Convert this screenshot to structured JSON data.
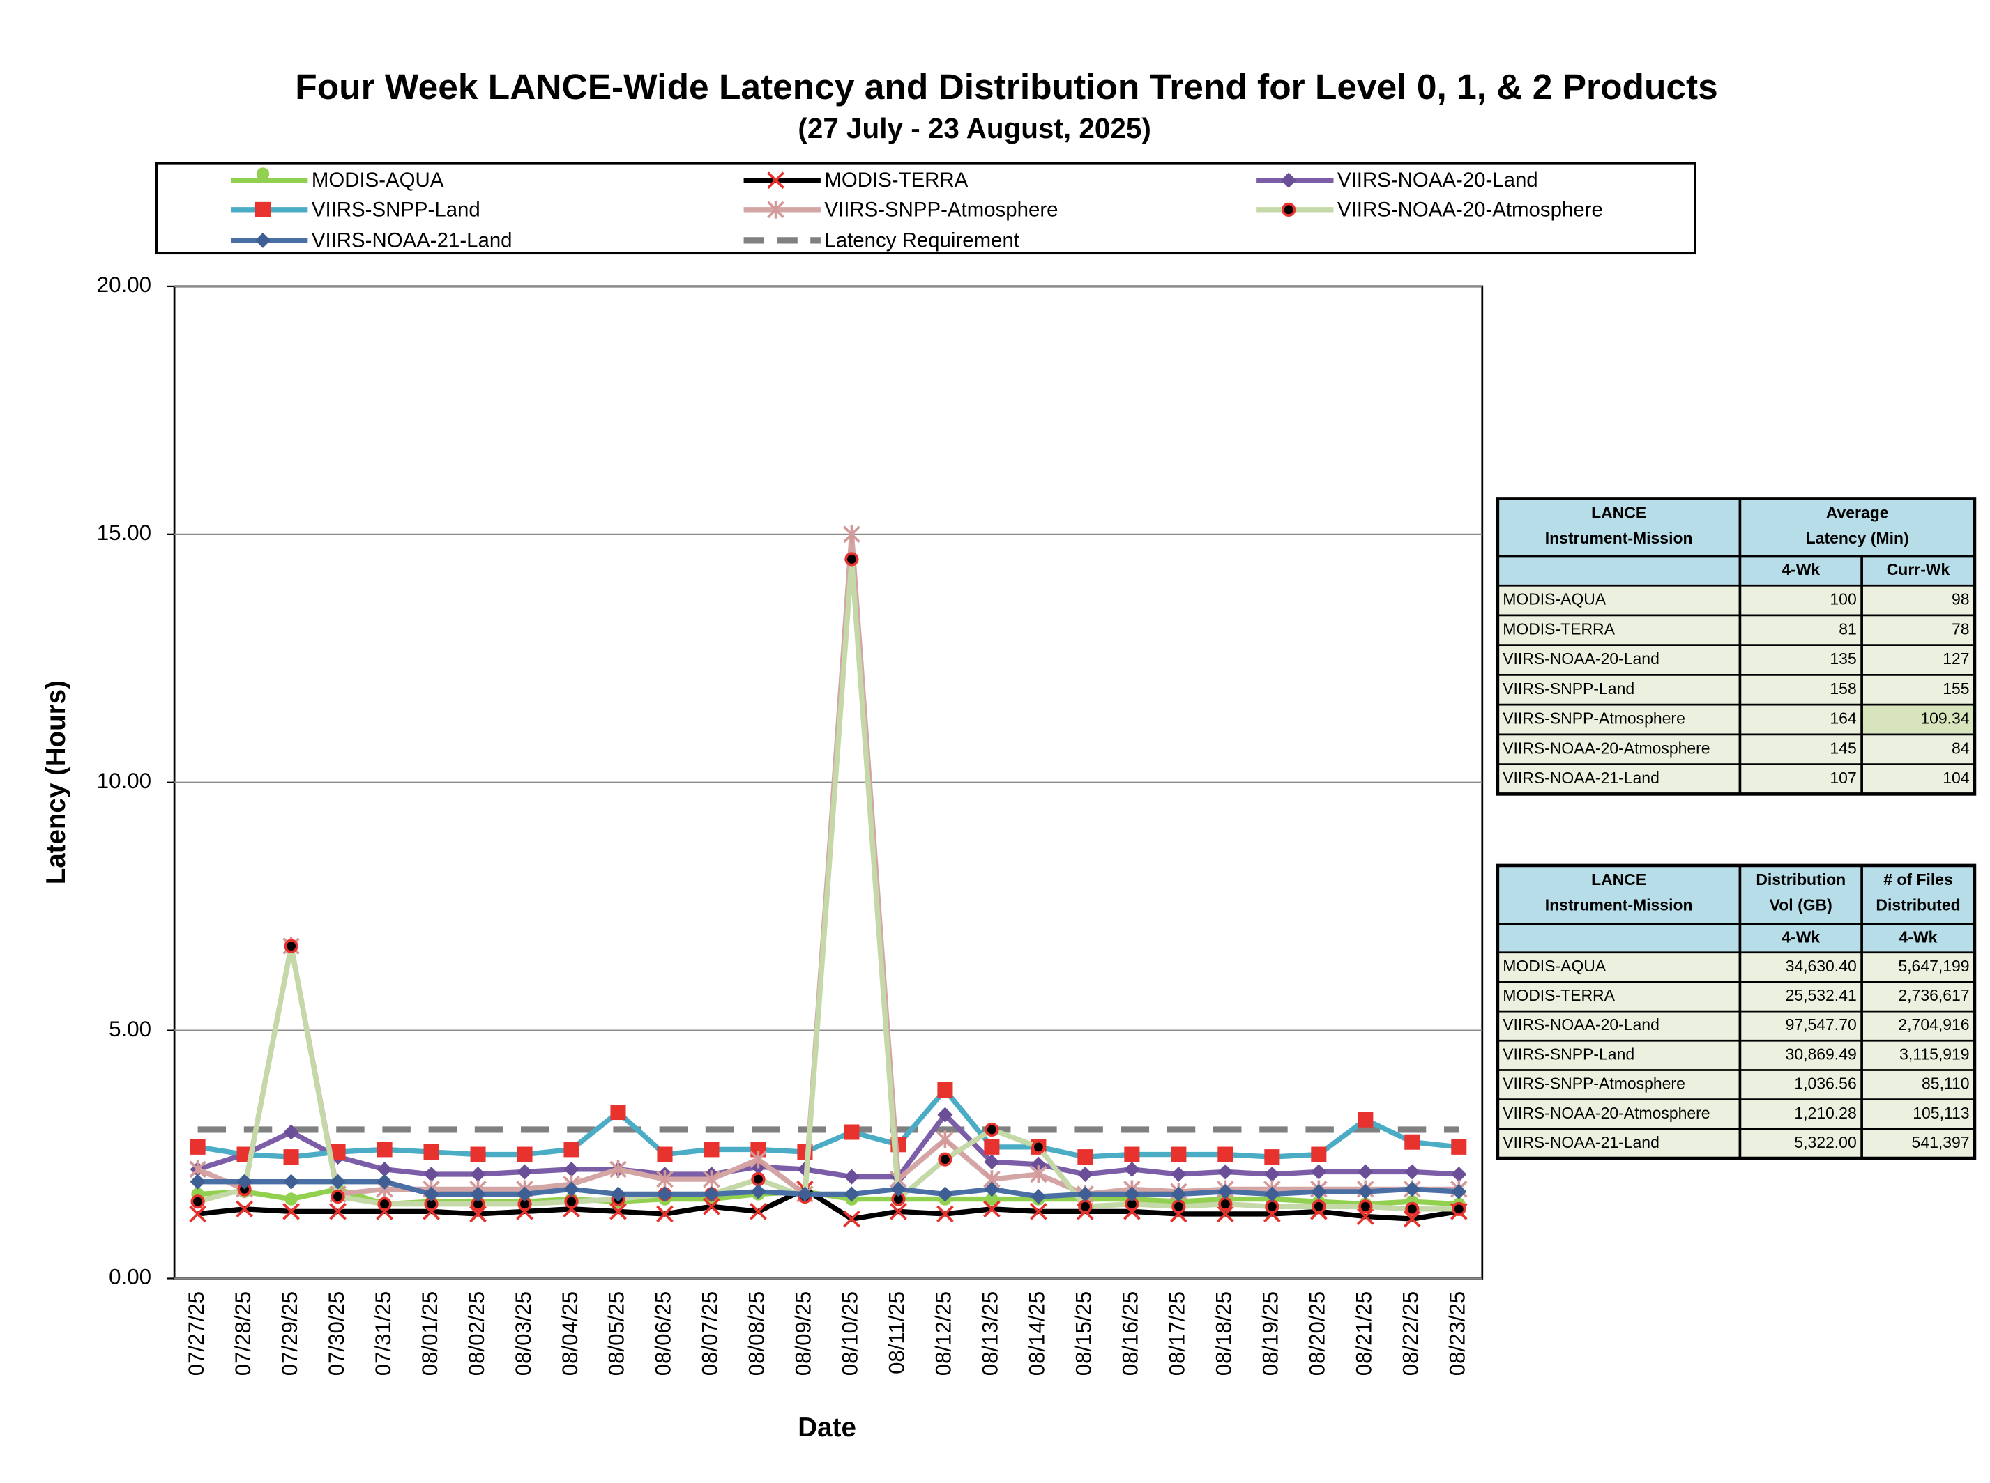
{
  "chart_data": {
    "type": "line",
    "title": "Four Week LANCE-Wide Latency and Distribution Trend for Level 0, 1, & 2 Products",
    "subtitle": "(27  July   -  23  August,  2025)",
    "x_label": "Date",
    "y_label": "Latency (Hours)",
    "ylim": [
      0,
      20
    ],
    "yticks": [
      {
        "value": 0,
        "label": "0.00"
      },
      {
        "value": 5,
        "label": "5.00"
      },
      {
        "value": 10,
        "label": "10.00"
      },
      {
        "value": 15,
        "label": "15.00"
      },
      {
        "value": 20,
        "label": "20.00"
      }
    ],
    "grid": true,
    "categories": [
      "07/27/25",
      "07/28/25",
      "07/29/25",
      "07/30/25",
      "07/31/25",
      "08/01/25",
      "08/02/25",
      "08/03/25",
      "08/04/25",
      "08/05/25",
      "08/06/25",
      "08/07/25",
      "08/08/25",
      "08/09/25",
      "08/10/25",
      "08/11/25",
      "08/12/25",
      "08/13/25",
      "08/14/25",
      "08/15/25",
      "08/16/25",
      "08/17/25",
      "08/18/25",
      "08/19/25",
      "08/20/25",
      "08/21/25",
      "08/22/25",
      "08/23/25"
    ],
    "series": [
      {
        "name": "MODIS-AQUA",
        "color": "#92d050",
        "marker": "circle",
        "marker_color": "#92d050",
        "values": [
          1.7,
          1.75,
          1.6,
          1.8,
          1.5,
          1.55,
          1.55,
          1.55,
          1.6,
          1.55,
          1.6,
          1.6,
          1.7,
          1.75,
          1.6,
          1.6,
          1.6,
          1.6,
          1.6,
          1.6,
          1.6,
          1.55,
          1.6,
          1.6,
          1.55,
          1.5,
          1.55,
          1.5
        ]
      },
      {
        "name": "MODIS-TERRA",
        "color": "#000000",
        "marker": "x",
        "marker_color": "#e8322d",
        "values": [
          1.3,
          1.4,
          1.35,
          1.35,
          1.35,
          1.35,
          1.3,
          1.35,
          1.4,
          1.35,
          1.3,
          1.45,
          1.35,
          1.8,
          1.2,
          1.35,
          1.3,
          1.4,
          1.35,
          1.35,
          1.35,
          1.3,
          1.3,
          1.3,
          1.35,
          1.25,
          1.2,
          1.35
        ]
      },
      {
        "name": "VIIRS-NOAA-20-Land",
        "color": "#7b5ea7",
        "marker": "diamond",
        "marker_color": "#6a4e98",
        "values": [
          2.2,
          2.5,
          2.95,
          2.45,
          2.2,
          2.1,
          2.1,
          2.15,
          2.2,
          2.2,
          2.1,
          2.1,
          2.25,
          2.2,
          2.05,
          2.05,
          3.3,
          2.35,
          2.3,
          2.1,
          2.2,
          2.1,
          2.15,
          2.1,
          2.15,
          2.15,
          2.15,
          2.1
        ]
      },
      {
        "name": "VIIRS-SNPP-Land",
        "color": "#4bacc6",
        "marker": "square",
        "marker_color": "#e8322d",
        "values": [
          2.65,
          2.5,
          2.45,
          2.55,
          2.6,
          2.55,
          2.5,
          2.5,
          2.6,
          3.35,
          2.5,
          2.6,
          2.6,
          2.55,
          2.95,
          2.7,
          3.8,
          2.65,
          2.65,
          2.45,
          2.5,
          2.5,
          2.5,
          2.45,
          2.5,
          3.2,
          2.75,
          2.65
        ]
      },
      {
        "name": "VIIRS-SNPP-Atmosphere",
        "color": "#d4a5a5",
        "marker": "star",
        "marker_color": "#d49a9a",
        "values": [
          2.2,
          1.8,
          6.7,
          1.7,
          1.8,
          1.8,
          1.8,
          1.8,
          1.9,
          2.2,
          2.0,
          2.0,
          2.4,
          1.7,
          15.0,
          2.0,
          2.8,
          2.0,
          2.1,
          1.7,
          1.8,
          1.75,
          1.8,
          1.8,
          1.8,
          1.8,
          1.8,
          1.8
        ]
      },
      {
        "name": "VIIRS-NOAA-20-Atmosphere",
        "color": "#c4d8a8",
        "marker": "dot",
        "marker_color": "#e8322d",
        "values": [
          1.55,
          1.8,
          6.7,
          1.65,
          1.5,
          1.5,
          1.5,
          1.5,
          1.55,
          1.6,
          1.7,
          1.7,
          2.0,
          1.65,
          14.5,
          1.6,
          2.4,
          3.0,
          2.65,
          1.45,
          1.5,
          1.45,
          1.5,
          1.45,
          1.45,
          1.45,
          1.4,
          1.4
        ]
      },
      {
        "name": "VIIRS-NOAA-21-Land",
        "color": "#4a6fa5",
        "marker": "diamond",
        "marker_color": "#3f5f94",
        "values": [
          1.95,
          1.95,
          1.95,
          1.95,
          1.95,
          1.7,
          1.7,
          1.7,
          1.8,
          1.7,
          1.7,
          1.7,
          1.75,
          1.7,
          1.7,
          1.8,
          1.7,
          1.8,
          1.65,
          1.7,
          1.7,
          1.7,
          1.75,
          1.7,
          1.75,
          1.75,
          1.8,
          1.75
        ]
      },
      {
        "name": "Latency Requirement",
        "color": "#808080",
        "marker": "none",
        "dash": true,
        "values": [
          3,
          3,
          3,
          3,
          3,
          3,
          3,
          3,
          3,
          3,
          3,
          3,
          3,
          3,
          3,
          3,
          3,
          3,
          3,
          3,
          3,
          3,
          3,
          3,
          3,
          3,
          3,
          3
        ]
      }
    ]
  },
  "latency_table": {
    "header": [
      [
        "LANCE",
        "Instrument-Mission"
      ],
      [
        "Average",
        "Latency (Min)"
      ]
    ],
    "subheader": [
      "4-Wk",
      "Curr-Wk"
    ],
    "rows": [
      [
        "MODIS-AQUA",
        "100",
        "98"
      ],
      [
        "MODIS-TERRA",
        "81",
        "78"
      ],
      [
        "VIIRS-NOAA-20-Land",
        "135",
        "127"
      ],
      [
        "VIIRS-SNPP-Land",
        "158",
        "155"
      ],
      [
        "VIIRS-SNPP-Atmosphere",
        "164",
        "109.34"
      ],
      [
        "VIIRS-NOAA-20-Atmosphere",
        "145",
        "84"
      ],
      [
        "VIIRS-NOAA-21-Land",
        "107",
        "104"
      ]
    ]
  },
  "distribution_table": {
    "header": [
      [
        "LANCE",
        "Instrument-Mission"
      ],
      [
        "Distribution",
        "Vol (GB)"
      ],
      [
        "# of Files",
        "Distributed"
      ]
    ],
    "subheader": [
      "4-Wk",
      "4-Wk"
    ],
    "rows": [
      [
        "MODIS-AQUA",
        "34,630.40",
        "5,647,199"
      ],
      [
        "MODIS-TERRA",
        "25,532.41",
        "2,736,617"
      ],
      [
        "VIIRS-NOAA-20-Land",
        "97,547.70",
        "2,704,916"
      ],
      [
        "VIIRS-SNPP-Land",
        "30,869.49",
        "3,115,919"
      ],
      [
        "VIIRS-SNPP-Atmosphere",
        "1,036.56",
        "85,110"
      ],
      [
        "VIIRS-NOAA-20-Atmosphere",
        "1,210.28",
        "105,113"
      ],
      [
        "VIIRS-NOAA-21-Land",
        "5,322.00",
        "541,397"
      ]
    ]
  }
}
